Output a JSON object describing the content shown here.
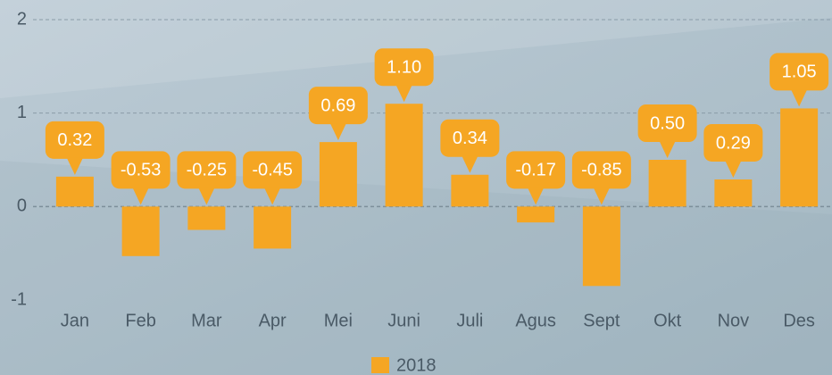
{
  "chart_data": {
    "type": "bar",
    "categories": [
      "Jan",
      "Feb",
      "Mar",
      "Apr",
      "Mei",
      "Juni",
      "Juli",
      "Agus",
      "Sept",
      "Okt",
      "Nov",
      "Des"
    ],
    "series": [
      {
        "name": "2018",
        "color": "#f5a623",
        "values": [
          0.32,
          -0.53,
          -0.25,
          -0.45,
          0.69,
          1.1,
          0.34,
          -0.17,
          -0.85,
          0.5,
          0.29,
          1.05
        ],
        "value_labels": [
          "0.32",
          "-0.53",
          "-0.25",
          "-0.45",
          "0.69",
          "1.10",
          "0.34",
          "-0.17",
          "-0.85",
          "0.50",
          "0.29",
          "1.05"
        ]
      }
    ],
    "ylim": [
      -1,
      2
    ],
    "yticks": [
      -1,
      0,
      1,
      2
    ],
    "grid": true,
    "legend": "bottom"
  }
}
